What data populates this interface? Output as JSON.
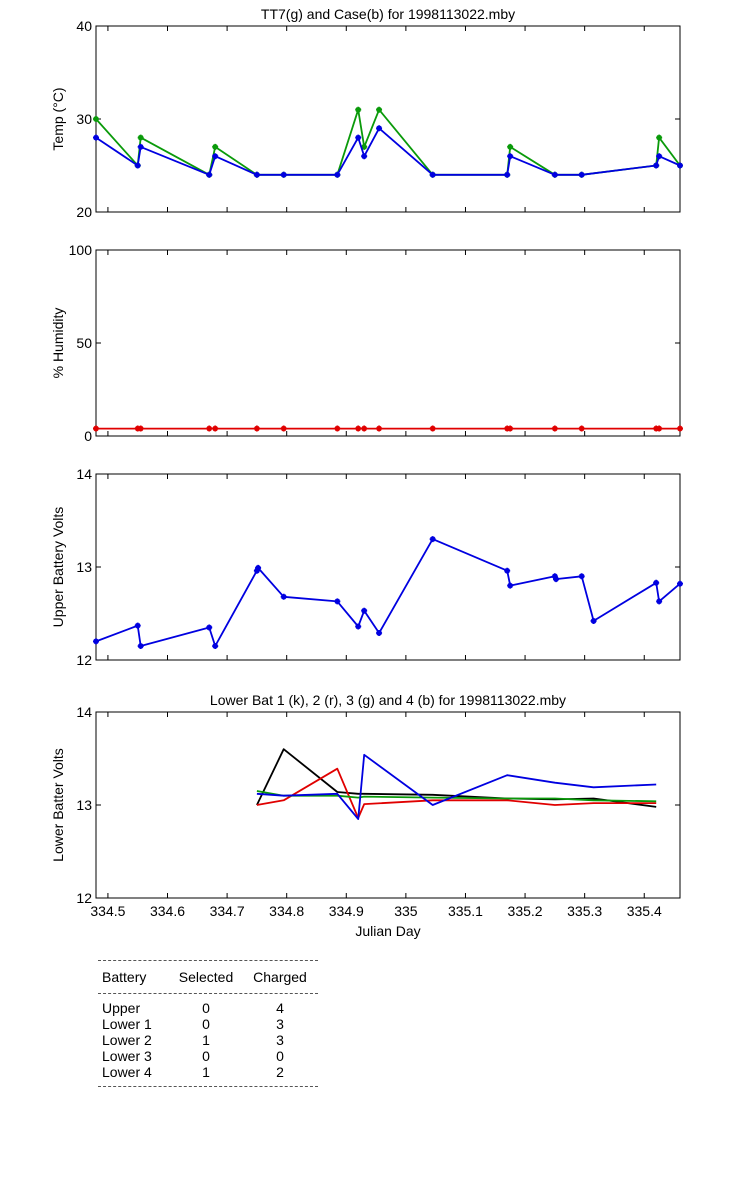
{
  "chart_data": [
    {
      "type": "line",
      "title": "TT7(g) and Case(b) for 1998113022.mby",
      "xlabel": "",
      "ylabel": "Temp  (°C)",
      "xlim": [
        334.48,
        335.46
      ],
      "ylim": [
        20,
        40
      ],
      "yticks": [
        "20",
        "30",
        "40"
      ],
      "x": [
        334.48,
        334.55,
        334.555,
        334.67,
        334.68,
        334.75,
        334.795,
        334.885,
        334.92,
        334.93,
        334.955,
        335.045,
        335.17,
        335.175,
        335.25,
        335.295,
        335.42,
        335.425,
        335.46
      ],
      "series": [
        {
          "name": "TT7",
          "color": "#0a9a0a",
          "marker": true,
          "values": [
            30,
            25,
            28,
            24,
            27,
            24,
            24,
            24,
            31,
            27,
            31,
            24,
            24,
            27,
            24,
            24,
            25,
            28,
            25
          ]
        },
        {
          "name": "Case",
          "color": "#0000e0",
          "marker": true,
          "values": [
            28,
            25,
            27,
            24,
            26,
            24,
            24,
            24,
            28,
            26,
            29,
            24,
            24,
            26,
            24,
            24,
            25,
            26,
            25
          ]
        }
      ]
    },
    {
      "type": "line",
      "title": "",
      "xlabel": "",
      "ylabel": "% Humidity",
      "xlim": [
        334.48,
        335.46
      ],
      "ylim": [
        0,
        100
      ],
      "yticks": [
        "0",
        "50",
        "100"
      ],
      "x": [
        334.48,
        334.55,
        334.555,
        334.67,
        334.68,
        334.75,
        334.795,
        334.885,
        334.92,
        334.93,
        334.955,
        335.045,
        335.17,
        335.175,
        335.25,
        335.295,
        335.42,
        335.425,
        335.46
      ],
      "series": [
        {
          "name": "Humidity",
          "color": "#e00000",
          "marker": true,
          "values": [
            4,
            4,
            4,
            4,
            4,
            4,
            4,
            4,
            4,
            4,
            4,
            4,
            4,
            4,
            4,
            4,
            4,
            4,
            4
          ]
        }
      ]
    },
    {
      "type": "line",
      "title": "",
      "xlabel": "",
      "ylabel": "Upper Battery Volts",
      "xlim": [
        334.48,
        335.46
      ],
      "ylim": [
        12,
        14
      ],
      "yticks": [
        "12",
        "13",
        "14"
      ],
      "x": [
        334.48,
        334.55,
        334.555,
        334.67,
        334.68,
        334.75,
        334.752,
        334.795,
        334.885,
        334.92,
        334.93,
        334.955,
        335.045,
        335.17,
        335.175,
        335.25,
        335.252,
        335.295,
        335.315,
        335.42,
        335.425,
        335.46
      ],
      "series": [
        {
          "name": "Upper",
          "color": "#0000e0",
          "marker": true,
          "values": [
            12.2,
            12.37,
            12.15,
            12.35,
            12.15,
            12.96,
            12.99,
            12.68,
            12.63,
            12.36,
            12.53,
            12.29,
            13.3,
            12.96,
            12.8,
            12.9,
            12.87,
            12.9,
            12.42,
            12.83,
            12.63,
            12.82
          ]
        }
      ]
    },
    {
      "type": "line",
      "title": "Lower Bat 1 (k), 2 (r), 3 (g) and 4 (b) for 1998113022.mby",
      "xlabel": "Julian Day",
      "ylabel": "Lower Batter Volts",
      "xlim": [
        334.48,
        335.46
      ],
      "ylim": [
        12,
        14
      ],
      "yticks": [
        "12",
        "13",
        "14"
      ],
      "xticks": [
        "334.5",
        "334.6",
        "334.7",
        "334.8",
        "334.9",
        "335",
        "335.1",
        "335.2",
        "335.3",
        "335.4"
      ],
      "x": [
        334.75,
        334.795,
        334.885,
        334.92,
        334.93,
        335.045,
        335.17,
        335.25,
        335.315,
        335.42
      ],
      "series": [
        {
          "name": "Lower 1",
          "color": "#000000",
          "marker": false,
          "values": [
            13.0,
            13.6,
            13.14,
            13.12,
            13.12,
            13.11,
            13.07,
            13.06,
            13.07,
            12.98
          ]
        },
        {
          "name": "Lower 2",
          "color": "#e00000",
          "marker": false,
          "values": [
            13.0,
            13.05,
            13.39,
            12.86,
            13.01,
            13.05,
            13.05,
            13.0,
            13.02,
            13.02
          ]
        },
        {
          "name": "Lower 3",
          "color": "#0a9a0a",
          "marker": false,
          "values": [
            13.15,
            13.1,
            13.1,
            13.08,
            13.09,
            13.08,
            13.07,
            13.07,
            13.05,
            13.04
          ]
        },
        {
          "name": "Lower 4",
          "color": "#0000e0",
          "marker": false,
          "values": [
            13.12,
            13.1,
            13.12,
            12.85,
            13.54,
            13.0,
            13.32,
            13.24,
            13.19,
            13.22
          ]
        }
      ]
    }
  ],
  "summary_table": {
    "headers": [
      "Battery",
      "Selected",
      "Charged"
    ],
    "rows": [
      [
        "Upper",
        "0",
        "4"
      ],
      [
        "Lower 1",
        "0",
        "3"
      ],
      [
        "Lower 2",
        "1",
        "3"
      ],
      [
        "Lower 3",
        "0",
        "0"
      ],
      [
        "Lower 4",
        "1",
        "2"
      ]
    ]
  }
}
